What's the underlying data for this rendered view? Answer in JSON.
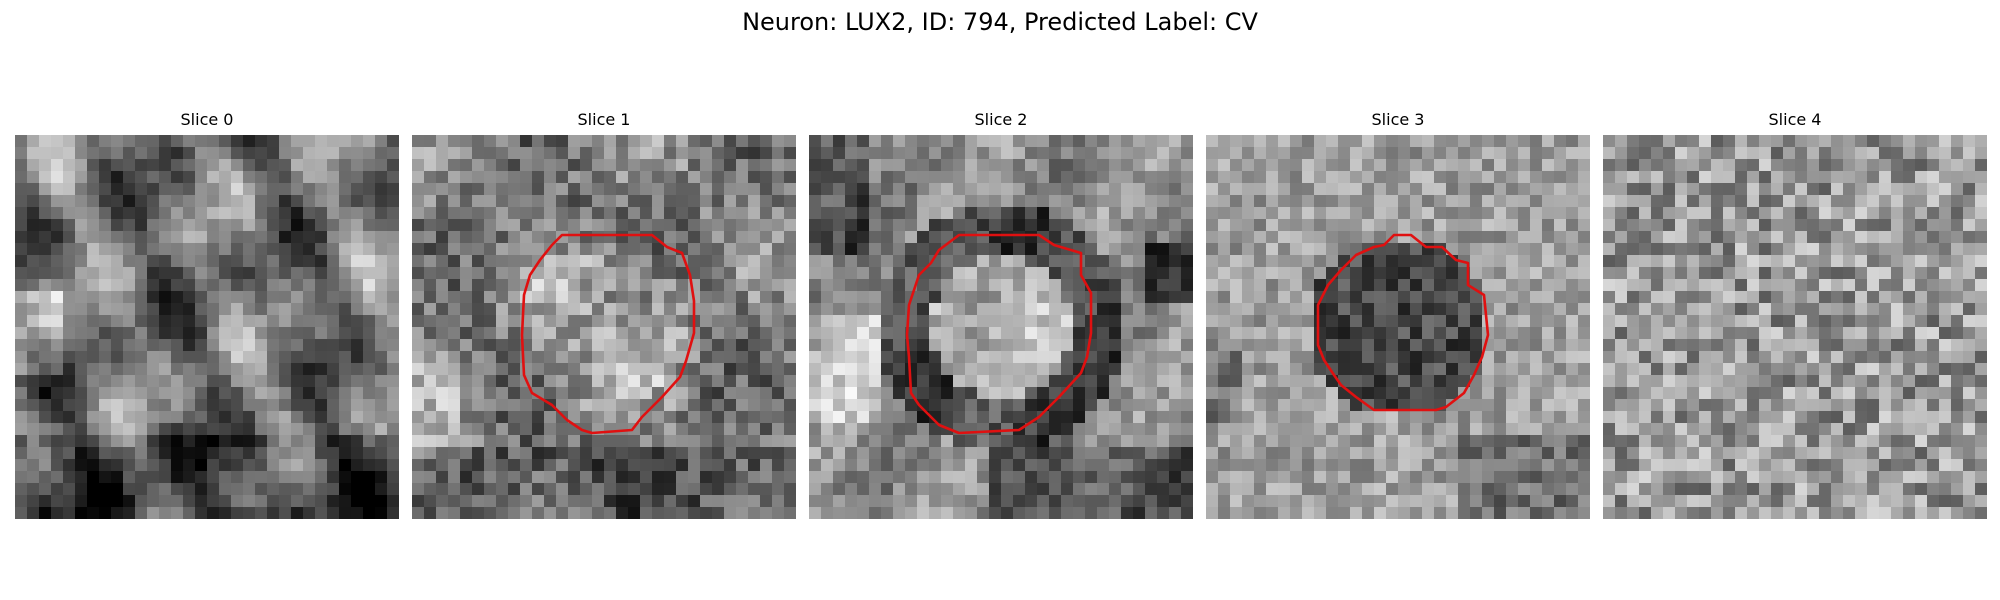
{
  "figure": {
    "title": "Neuron: LUX2, ID: 794, Predicted Label: CV"
  },
  "panels": [
    {
      "title": "Slice 0",
      "seed": 11,
      "pattern": "wavy",
      "contour": false
    },
    {
      "title": "Slice 1",
      "seed": 23,
      "pattern": "bright_center",
      "contour": true
    },
    {
      "title": "Slice 2",
      "seed": 37,
      "pattern": "dark_ring",
      "contour": true
    },
    {
      "title": "Slice 3",
      "seed": 41,
      "pattern": "dark_center",
      "contour": true
    },
    {
      "title": "Slice 4",
      "seed": 59,
      "pattern": "noise",
      "contour": false
    }
  ],
  "colors": {
    "contour": "#e01010",
    "background": "#ffffff"
  }
}
